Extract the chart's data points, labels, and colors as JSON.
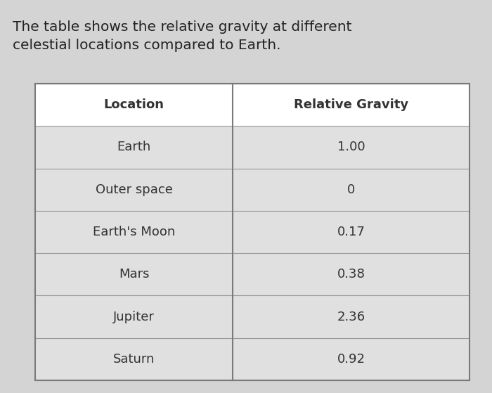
{
  "title": "The table shows the relative gravity at different\ncelestial locations compared to Earth.",
  "title_fontsize": 14.5,
  "col_headers": [
    "Location",
    "Relative Gravity"
  ],
  "rows": [
    [
      "Earth",
      "1.00"
    ],
    [
      "Outer space",
      "0"
    ],
    [
      "Earth's Moon",
      "0.17"
    ],
    [
      "Mars",
      "0.38"
    ],
    [
      "Jupiter",
      "2.36"
    ],
    [
      "Saturn",
      "0.92"
    ]
  ],
  "background_color": "#d4d4d4",
  "cell_bg": "#e0e0e0",
  "header_bg": "#ffffff",
  "border_color": "#7a7a7a",
  "text_color": "#333333",
  "title_color": "#222222",
  "header_fontsize": 13,
  "cell_fontsize": 13,
  "col_split": 0.455
}
